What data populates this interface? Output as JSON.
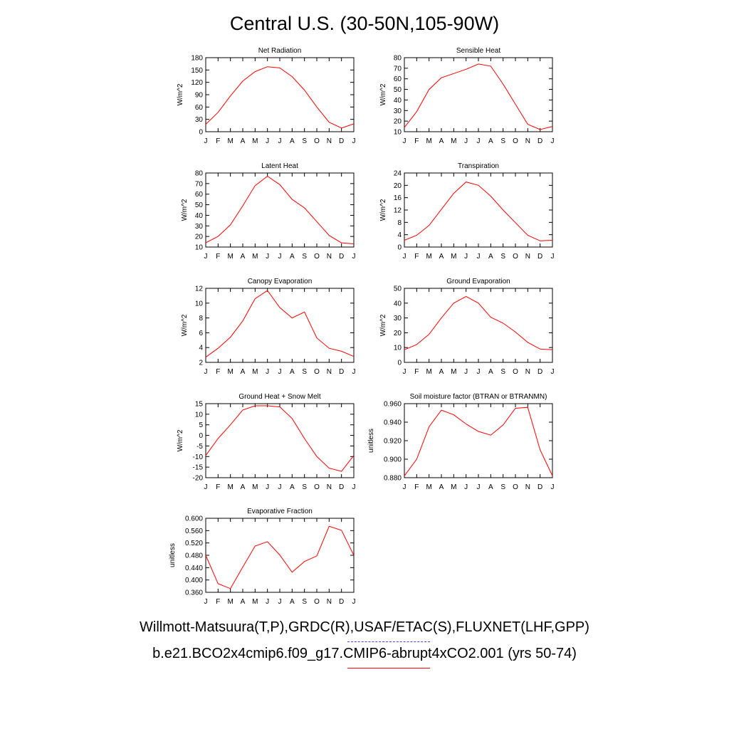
{
  "page_title": "Central U.S. (30-50N,105-90W)",
  "legend": {
    "observations": "Willmott-Matsuura(T,P),GRDC(R),USAF/ETAC(S),FLUXNET(LHF,GPP)",
    "observations_color": "#4444ff",
    "observations_style": "dashed",
    "model": "b.e21.BCO2x4cmip6.f09_g17.CMIP6-abrupt4xCO2.001 (yrs 50-74)",
    "model_color": "#ff0000",
    "model_style": "solid"
  },
  "chart_data": [
    {
      "type": "line",
      "title": "Net Radiation",
      "ylabel": "W/m^2",
      "categories": [
        "J",
        "F",
        "M",
        "A",
        "M",
        "J",
        "J",
        "A",
        "S",
        "O",
        "N",
        "D",
        "J"
      ],
      "ylim": [
        0,
        180
      ],
      "yticks": [
        "0",
        "30",
        "60",
        "90",
        "120",
        "150",
        "180"
      ],
      "series": [
        {
          "color": "#ff0000",
          "values": [
            18,
            47,
            87,
            123,
            146,
            158,
            155,
            134,
            101,
            60,
            23,
            9,
            19
          ]
        }
      ]
    },
    {
      "type": "line",
      "title": "Sensible Heat",
      "ylabel": "W/m^2",
      "categories": [
        "J",
        "F",
        "M",
        "A",
        "M",
        "J",
        "J",
        "A",
        "S",
        "O",
        "N",
        "D",
        "J"
      ],
      "ylim": [
        10,
        80
      ],
      "yticks": [
        "10",
        "20",
        "30",
        "40",
        "50",
        "60",
        "70",
        "80"
      ],
      "series": [
        {
          "color": "#ff0000",
          "values": [
            14,
            29,
            50,
            61,
            65,
            69,
            74,
            72,
            55,
            36,
            17,
            12,
            15
          ]
        }
      ]
    },
    {
      "type": "line",
      "title": "Latent Heat",
      "ylabel": "W/m^2",
      "categories": [
        "J",
        "F",
        "M",
        "A",
        "M",
        "J",
        "J",
        "A",
        "S",
        "O",
        "N",
        "D",
        "J"
      ],
      "ylim": [
        10,
        80
      ],
      "yticks": [
        "10",
        "20",
        "30",
        "40",
        "50",
        "60",
        "70",
        "80"
      ],
      "series": [
        {
          "color": "#ff0000",
          "values": [
            14,
            20,
            31,
            49,
            68,
            77,
            69,
            55,
            47,
            34,
            21,
            14,
            13
          ]
        }
      ]
    },
    {
      "type": "line",
      "title": "Transpiration",
      "ylabel": "W/m^2",
      "categories": [
        "J",
        "F",
        "M",
        "A",
        "M",
        "J",
        "J",
        "A",
        "S",
        "O",
        "N",
        "D",
        "J"
      ],
      "ylim": [
        0,
        24
      ],
      "yticks": [
        "0",
        "4",
        "8",
        "12",
        "16",
        "20",
        "24"
      ],
      "series": [
        {
          "color": "#ff0000",
          "values": [
            2.2,
            3.8,
            7,
            12.2,
            17.4,
            21.1,
            20,
            16.5,
            12,
            7.9,
            3.8,
            2,
            2.2
          ]
        }
      ]
    },
    {
      "type": "line",
      "title": "Canopy Evaporation",
      "ylabel": "W/m^2",
      "categories": [
        "J",
        "F",
        "M",
        "A",
        "M",
        "J",
        "J",
        "A",
        "S",
        "O",
        "N",
        "D",
        "J"
      ],
      "ylim": [
        2,
        12
      ],
      "yticks": [
        "2",
        "4",
        "6",
        "8",
        "10",
        "12"
      ],
      "series": [
        {
          "color": "#ff0000",
          "values": [
            2.7,
            3.9,
            5.4,
            7.6,
            10.6,
            11.7,
            9.4,
            8,
            8.8,
            5.3,
            3.9,
            3.5,
            2.8
          ]
        }
      ]
    },
    {
      "type": "line",
      "title": "Ground Evaporation",
      "ylabel": "W/m^2",
      "categories": [
        "J",
        "F",
        "M",
        "A",
        "M",
        "J",
        "J",
        "A",
        "S",
        "O",
        "N",
        "D",
        "J"
      ],
      "ylim": [
        0,
        50
      ],
      "yticks": [
        "0",
        "10",
        "20",
        "30",
        "40",
        "50"
      ],
      "series": [
        {
          "color": "#ff0000",
          "values": [
            8.5,
            12,
            19,
            30,
            40,
            44.5,
            40,
            30.5,
            26.5,
            20.5,
            13.5,
            9,
            8.5
          ]
        }
      ]
    },
    {
      "type": "line",
      "title": "Ground Heat + Snow Melt",
      "ylabel": "W/m^2",
      "categories": [
        "J",
        "F",
        "M",
        "A",
        "M",
        "J",
        "J",
        "A",
        "S",
        "O",
        "N",
        "D",
        "J"
      ],
      "ylim": [
        -20,
        15
      ],
      "yticks": [
        "-20",
        "-15",
        "-10",
        "-5",
        "0",
        "5",
        "10",
        "15"
      ],
      "series": [
        {
          "color": "#ff0000",
          "values": [
            -9.5,
            -1.5,
            5,
            12,
            14,
            14,
            13.5,
            8,
            -1.5,
            -10,
            -15.5,
            -17,
            -9.5
          ]
        }
      ]
    },
    {
      "type": "line",
      "title": "Soil moisture factor (BTRAN or BTRANMN)",
      "ylabel": "unitless",
      "categories": [
        "J",
        "F",
        "M",
        "A",
        "M",
        "J",
        "J",
        "A",
        "S",
        "O",
        "N",
        "D",
        "J"
      ],
      "ylim": [
        0.88,
        0.96
      ],
      "yticks": [
        "0.880",
        "0.900",
        "0.920",
        "0.940",
        "0.960"
      ],
      "series": [
        {
          "color": "#ff0000",
          "values": [
            0.882,
            0.9,
            0.935,
            0.953,
            0.948,
            0.938,
            0.93,
            0.926,
            0.937,
            0.955,
            0.956,
            0.91,
            0.882
          ]
        }
      ]
    },
    {
      "type": "line",
      "title": "Evaporative Fraction",
      "ylabel": "unitless",
      "categories": [
        "J",
        "F",
        "M",
        "A",
        "M",
        "J",
        "J",
        "A",
        "S",
        "O",
        "N",
        "D",
        "J"
      ],
      "ylim": [
        0.36,
        0.6
      ],
      "yticks": [
        "0.360",
        "0.400",
        "0.440",
        "0.480",
        "0.520",
        "0.560",
        "0.600"
      ],
      "series": [
        {
          "color": "#ff0000",
          "values": [
            0.48,
            0.388,
            0.372,
            0.442,
            0.51,
            0.524,
            0.481,
            0.425,
            0.46,
            0.478,
            0.574,
            0.561,
            0.48
          ]
        }
      ]
    }
  ]
}
